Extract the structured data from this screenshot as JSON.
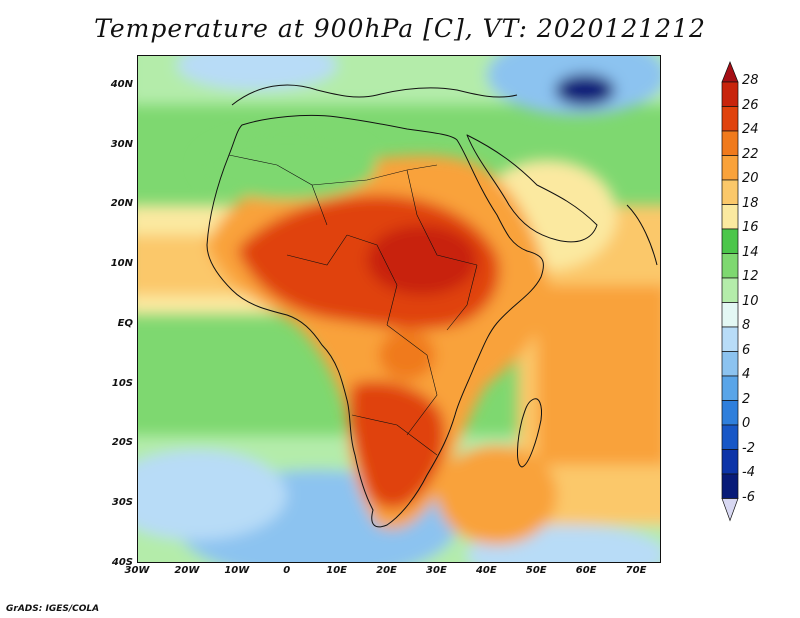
{
  "title": "Temperature at 900hPa [C], VT: 2020121212",
  "credit": "GrADS: IGES/COLA",
  "map": {
    "lon_range": [
      -30,
      75
    ],
    "lat_range": [
      -40,
      45
    ],
    "lat_labels": [
      "40N",
      "30N",
      "20N",
      "10N",
      "EQ",
      "10S",
      "20S",
      "30S",
      "40S"
    ],
    "lat_values": [
      40,
      30,
      20,
      10,
      0,
      -10,
      -20,
      -30,
      -40
    ],
    "lon_labels": [
      "30W",
      "20W",
      "10W",
      "0",
      "10E",
      "20E",
      "30E",
      "40E",
      "50E",
      "60E",
      "70E"
    ],
    "lon_values": [
      -30,
      -20,
      -10,
      0,
      10,
      20,
      30,
      40,
      50,
      60,
      70
    ]
  },
  "colorbar": {
    "labels": [
      "28",
      "26",
      "24",
      "22",
      "20",
      "18",
      "16",
      "14",
      "12",
      "10",
      "8",
      "6",
      "4",
      "2",
      "0",
      "-2",
      "-4",
      "-6"
    ],
    "colors": [
      "#a50f15",
      "#c8240c",
      "#e0420c",
      "#f07a1c",
      "#f9a23a",
      "#fbc86a",
      "#fbe9a0",
      "#4bc64a",
      "#7ed870",
      "#b4ecaa",
      "#e4f8f4",
      "#b8dcf7",
      "#8cc3f0",
      "#5aa5e8",
      "#2f7fdc",
      "#1857c6",
      "#0c34a8",
      "#081b78",
      "#d8d8f2"
    ]
  }
}
